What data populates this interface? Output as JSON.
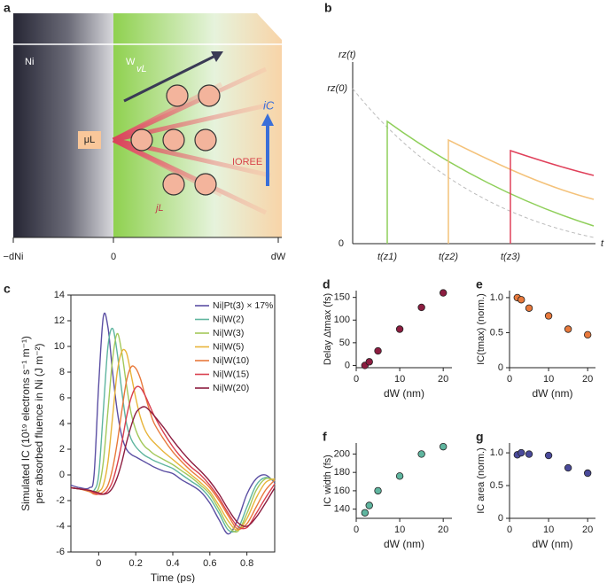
{
  "panel_a": {
    "label": "a",
    "ni": "Ni",
    "w": "W",
    "v_l": "vL",
    "mu_l": "μL",
    "i_c": "iC",
    "ioree": "IOREE",
    "j_l": "jL",
    "axis_labels": [
      "−dNi",
      "0",
      "dW"
    ]
  },
  "panel_b": {
    "label": "b",
    "ylabel": "rz(t)",
    "y_start": "rz(0)",
    "origin": "0",
    "xlabel": "t",
    "times": [
      "t(z1)",
      "t(z2)",
      "t(z3)"
    ]
  },
  "chart_data": [
    {
      "type": "line",
      "panel_label": "c",
      "ylabel": [
        "Simulated IC (10¹⁹ electrons s⁻¹ m⁻¹)",
        "per absorbed fluence in Ni (J m⁻²)"
      ],
      "xlabel": "Time (ps)",
      "x": [
        -0.15,
        -0.1,
        -0.05,
        -0.025,
        0,
        0.025,
        0.05,
        0.075,
        0.1,
        0.125,
        0.15,
        0.175,
        0.2,
        0.225,
        0.25,
        0.275,
        0.3,
        0.35,
        0.4,
        0.45,
        0.5,
        0.55,
        0.6,
        0.65,
        0.7,
        0.75,
        0.8,
        0.85,
        0.9,
        0.95
      ],
      "xlim": [
        -0.15,
        0.95
      ],
      "xticks": [
        0,
        0.2,
        0.4,
        0.6,
        0.8
      ],
      "ylim": [
        -6,
        14
      ],
      "yticks": [
        -6,
        -4,
        -2,
        0,
        2,
        4,
        6,
        8,
        10,
        12,
        14
      ],
      "series": [
        {
          "name": "Ni|Pt(3) × 17%",
          "color": "#5b4fa3",
          "values": [
            -0.8,
            -1.0,
            -1.0,
            0,
            7,
            12.3,
            11.5,
            8,
            5,
            3,
            2,
            1.6,
            1.4,
            1.2,
            1,
            0.8,
            0.6,
            0.3,
            0.1,
            -0.4,
            -0.8,
            -1.3,
            -2.2,
            -3.5,
            -4.6,
            -3.5,
            -1.5,
            -0.3,
            0,
            -0.6
          ]
        },
        {
          "name": "Ni|W(2)",
          "color": "#5fb59f",
          "values": [
            -1,
            -1.1,
            -1.2,
            -1.2,
            0,
            5,
            10,
            11.4,
            9.5,
            6.5,
            4,
            2.8,
            2.2,
            1.8,
            1.5,
            1.3,
            1.1,
            0.8,
            0.5,
            0,
            -0.5,
            -1,
            -1.8,
            -3,
            -4.3,
            -4.2,
            -2.5,
            -0.8,
            -0.2,
            -0.5
          ]
        },
        {
          "name": "Ni|W(3)",
          "color": "#a3c85a",
          "values": [
            -1,
            -1.1,
            -1.2,
            -1.3,
            -1,
            1,
            5,
            9,
            11,
            9.5,
            7,
            4.8,
            3.5,
            2.7,
            2.2,
            1.9,
            1.6,
            1.2,
            0.8,
            0.3,
            -0.2,
            -0.8,
            -1.5,
            -2.7,
            -4,
            -4.4,
            -3,
            -1.2,
            -0.3,
            -0.4
          ]
        },
        {
          "name": "Ni|W(5)",
          "color": "#e8b43a",
          "values": [
            -1,
            -1.1,
            -1.3,
            -1.4,
            -1.3,
            -0.8,
            1,
            4.5,
            8,
            9.6,
            9.5,
            7.8,
            6,
            4.5,
            3.5,
            2.9,
            2.5,
            1.8,
            1.2,
            0.6,
            0,
            -0.6,
            -1.3,
            -2.4,
            -3.6,
            -4.3,
            -3.4,
            -1.8,
            -0.6,
            -0.3
          ]
        },
        {
          "name": "Ni|W(10)",
          "color": "#e8793c",
          "values": [
            -1,
            -1.1,
            -1.3,
            -1.5,
            -1.5,
            -1.3,
            -0.8,
            0.5,
            2.5,
            5,
            7.3,
            8.4,
            8.3,
            7.5,
            6.2,
            5,
            4,
            2.8,
            1.8,
            1,
            0.3,
            -0.3,
            -1,
            -2,
            -3.2,
            -4.2,
            -3.8,
            -2.5,
            -1.2,
            -0.4
          ]
        },
        {
          "name": "Ni|W(15)",
          "color": "#d94050",
          "values": [
            -1,
            -1.1,
            -1.2,
            -1.4,
            -1.5,
            -1.5,
            -1.2,
            -0.5,
            0.8,
            2.5,
            4.5,
            6,
            6.8,
            6.8,
            6.2,
            5.4,
            4.6,
            3.3,
            2.2,
            1.3,
            0.6,
            0,
            -0.8,
            -1.8,
            -3,
            -4,
            -4.1,
            -3,
            -1.8,
            -0.7
          ]
        },
        {
          "name": "Ni|W(20)",
          "color": "#8c1d40",
          "values": [
            -1,
            -1.1,
            -1.2,
            -1.3,
            -1.4,
            -1.5,
            -1.4,
            -1,
            -0.2,
            1,
            2.5,
            3.8,
            4.8,
            5.2,
            5.3,
            5,
            4.6,
            3.7,
            2.7,
            1.8,
            1,
            0.3,
            -0.5,
            -1.5,
            -2.7,
            -3.7,
            -4,
            -3.3,
            -2.2,
            -1
          ]
        }
      ]
    },
    {
      "type": "scatter",
      "panel_label": "d",
      "ylabel": "Delay Δtmax (fs)",
      "xlabel": "dW (nm)",
      "color": "#8c1d40",
      "x": [
        2,
        3,
        5,
        10,
        15,
        20
      ],
      "values": [
        0,
        8,
        32,
        80,
        128,
        160
      ],
      "xlim": [
        0,
        22
      ],
      "xticks": [
        0,
        10,
        20
      ],
      "ylim": [
        -5,
        165
      ],
      "yticks": [
        0,
        50,
        100,
        150
      ]
    },
    {
      "type": "scatter",
      "panel_label": "e",
      "ylabel": "IC(tmax) (norm.)",
      "xlabel": "dW (nm)",
      "color": "#e8793c",
      "x": [
        2,
        3,
        5,
        10,
        15,
        20
      ],
      "values": [
        1.0,
        0.97,
        0.85,
        0.74,
        0.55,
        0.47
      ],
      "xlim": [
        0,
        22
      ],
      "xticks": [
        0,
        10,
        20
      ],
      "ylim": [
        0,
        1.1
      ],
      "yticks": [
        0,
        0.5,
        {
          "value": 1,
          "label": "1.0"
        }
      ]
    },
    {
      "type": "scatter",
      "panel_label": "f",
      "ylabel": "IC width (fs)",
      "xlabel": "dW (nm)",
      "color": "#5fb59f",
      "x": [
        2,
        3,
        5,
        10,
        15,
        20
      ],
      "values": [
        136,
        144,
        160,
        176,
        200,
        208
      ],
      "xlim": [
        0,
        22
      ],
      "xticks": [
        0,
        10,
        20
      ],
      "ylim": [
        130,
        212
      ],
      "yticks": [
        140,
        160,
        180,
        200
      ]
    },
    {
      "type": "scatter",
      "panel_label": "g",
      "ylabel": "IC area (norm.)",
      "xlabel": "dW (nm)",
      "color": "#4a4a9a",
      "x": [
        2,
        3,
        5,
        10,
        15,
        20
      ],
      "values": [
        0.97,
        1.0,
        0.98,
        0.96,
        0.77,
        0.69
      ],
      "xlim": [
        0,
        22
      ],
      "xticks": [
        0,
        10,
        20
      ],
      "ylim": [
        0,
        1.15
      ],
      "yticks": [
        0,
        0.5,
        {
          "value": 1,
          "label": "1.0"
        }
      ]
    }
  ]
}
